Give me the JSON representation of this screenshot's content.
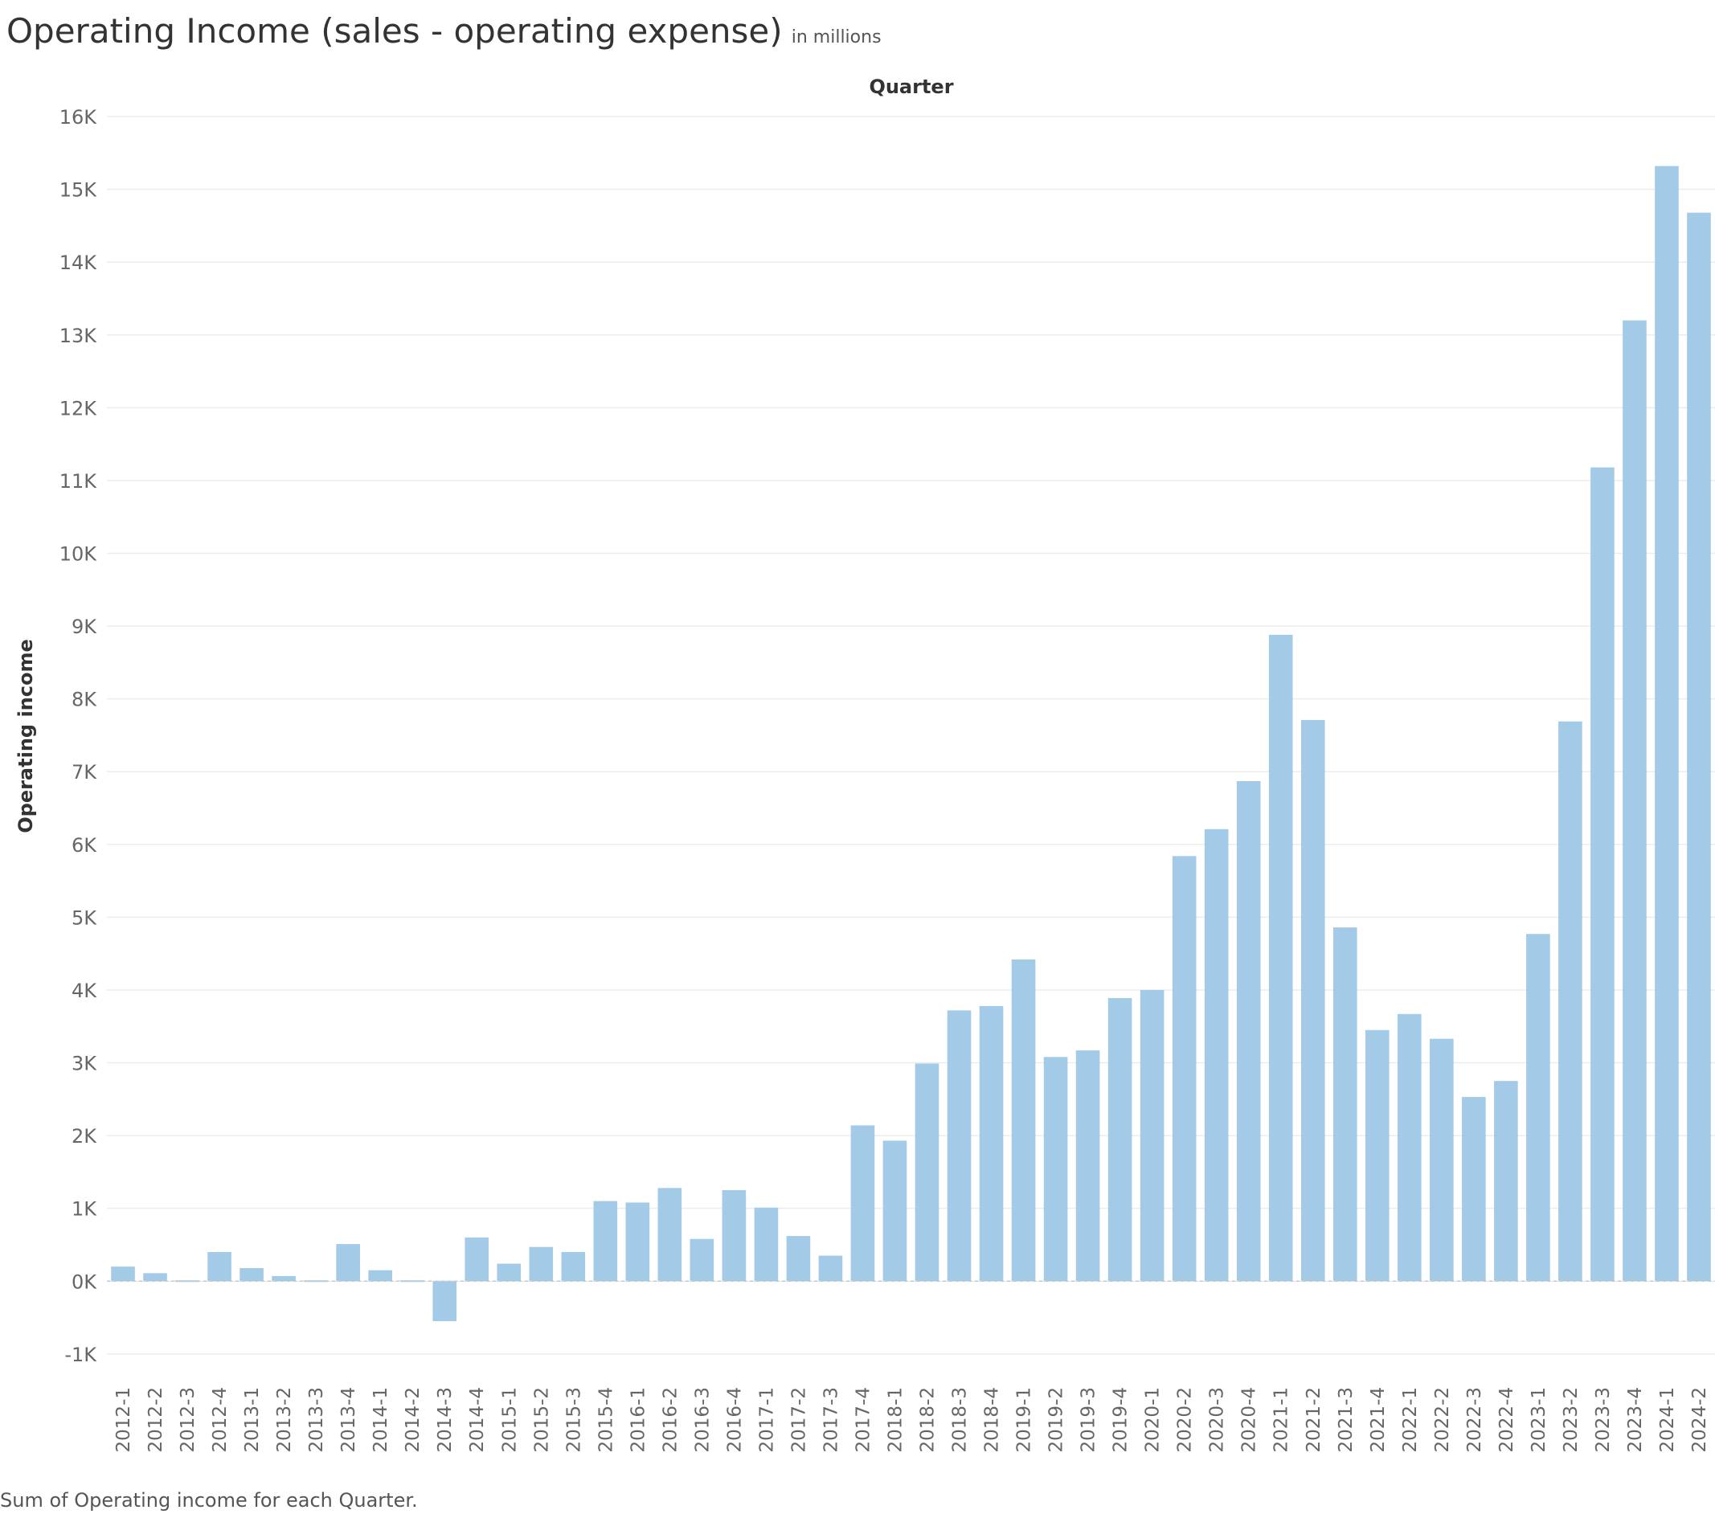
{
  "title": "Operating Income (sales - operating expense)",
  "subtitle": "in millions",
  "caption": "Sum of Operating income for each Quarter.",
  "colors": {
    "bar": "#a3cbe8",
    "grid": "#ececec",
    "axis_text": "#666666",
    "zero_line": "#c8c8c8"
  },
  "chart_data": {
    "type": "bar",
    "title": "Operating Income (sales - operating expense)",
    "subtitle": "in millions",
    "xlabel": "Quarter",
    "ylabel": "Operating income",
    "ylim": [
      -1300,
      16100
    ],
    "grid": true,
    "y_ticks": [
      -1000,
      0,
      1000,
      2000,
      3000,
      4000,
      5000,
      6000,
      7000,
      8000,
      9000,
      10000,
      11000,
      12000,
      13000,
      14000,
      15000,
      16000
    ],
    "y_tick_labels": [
      "-1K",
      "0K",
      "1K",
      "2K",
      "3K",
      "4K",
      "5K",
      "6K",
      "7K",
      "8K",
      "9K",
      "10K",
      "11K",
      "12K",
      "13K",
      "14K",
      "15K",
      "16K"
    ],
    "categories": [
      "2012-1",
      "2012-2",
      "2012-3",
      "2012-4",
      "2013-1",
      "2013-2",
      "2013-3",
      "2013-4",
      "2014-1",
      "2014-2",
      "2014-3",
      "2014-4",
      "2015-1",
      "2015-2",
      "2015-3",
      "2015-4",
      "2016-1",
      "2016-2",
      "2016-3",
      "2016-4",
      "2017-1",
      "2017-2",
      "2017-3",
      "2017-4",
      "2018-1",
      "2018-2",
      "2018-3",
      "2018-4",
      "2019-1",
      "2019-2",
      "2019-3",
      "2019-4",
      "2020-1",
      "2020-2",
      "2020-3",
      "2020-4",
      "2021-1",
      "2021-2",
      "2021-3",
      "2021-4",
      "2022-1",
      "2022-2",
      "2022-3",
      "2022-4",
      "2023-1",
      "2023-2",
      "2023-3",
      "2023-4",
      "2024-1",
      "2024-2"
    ],
    "values": [
      200,
      110,
      -20,
      400,
      180,
      70,
      -20,
      510,
      150,
      -20,
      -550,
      600,
      240,
      470,
      400,
      1100,
      1080,
      1280,
      580,
      1250,
      1010,
      620,
      350,
      2140,
      1930,
      2990,
      3720,
      3780,
      4420,
      3080,
      3170,
      3890,
      4000,
      5840,
      6210,
      6870,
      8880,
      7710,
      4860,
      3450,
      3670,
      3330,
      2530,
      2750,
      4770,
      7690,
      11180,
      13200,
      15320,
      14680
    ]
  }
}
